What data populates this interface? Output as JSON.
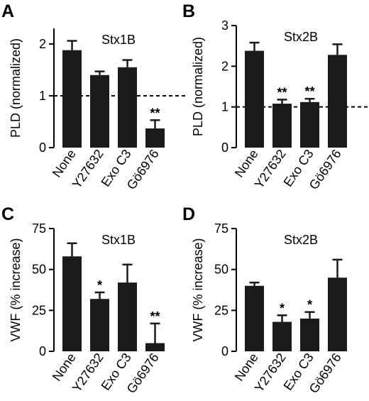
{
  "chart_data": [
    {
      "panel": "A",
      "type": "bar",
      "title": "Stx1B",
      "ylabel": "PLD (normalized)",
      "categories": [
        "None",
        "Y27632",
        "Exo C3",
        "Gö6976"
      ],
      "values": [
        1.88,
        1.4,
        1.55,
        0.37
      ],
      "errors": [
        0.18,
        0.07,
        0.14,
        0.16
      ],
      "significance": [
        "",
        "",
        "",
        "**"
      ],
      "ylim": [
        0,
        2.3
      ],
      "yticks": [
        "0",
        "1",
        "2"
      ],
      "reference_line": 1,
      "grid": false,
      "color": "#1a1a1a"
    },
    {
      "panel": "B",
      "type": "bar",
      "title": "Stx2B",
      "ylabel": "PLD (normalized)",
      "categories": [
        "None",
        "Y27632",
        "Exo C3",
        "Gö6976"
      ],
      "values": [
        2.38,
        1.08,
        1.12,
        2.28
      ],
      "errors": [
        0.2,
        0.1,
        0.08,
        0.26
      ],
      "significance": [
        "",
        "**",
        "**",
        ""
      ],
      "ylim": [
        0,
        3
      ],
      "yticks": [
        "0",
        "1",
        "2",
        "3"
      ],
      "reference_line": 1,
      "grid": false,
      "color": "#1a1a1a"
    },
    {
      "panel": "C",
      "type": "bar",
      "title": "Stx1B",
      "ylabel": "VWF (% increase)",
      "categories": [
        "None",
        "Y27632",
        "Exo C3",
        "Gö6976"
      ],
      "values": [
        58,
        32,
        42,
        5
      ],
      "errors": [
        8,
        4,
        11,
        12
      ],
      "significance": [
        "",
        "*",
        "",
        "**"
      ],
      "ylim": [
        0,
        75
      ],
      "yticks": [
        "0",
        "25",
        "50",
        "75"
      ],
      "reference_line": null,
      "grid": false,
      "color": "#1a1a1a"
    },
    {
      "panel": "D",
      "type": "bar",
      "title": "Stx2B",
      "ylabel": "VWF (% increase)",
      "categories": [
        "None",
        "Y27632",
        "Exo C3",
        "Gö6976"
      ],
      "values": [
        40,
        18,
        20,
        45
      ],
      "errors": [
        2,
        4,
        4,
        11
      ],
      "significance": [
        "",
        "*",
        "*",
        ""
      ],
      "ylim": [
        0,
        75
      ],
      "yticks": [
        "0",
        "25",
        "50",
        "75"
      ],
      "reference_line": null,
      "grid": false,
      "color": "#1a1a1a"
    }
  ]
}
